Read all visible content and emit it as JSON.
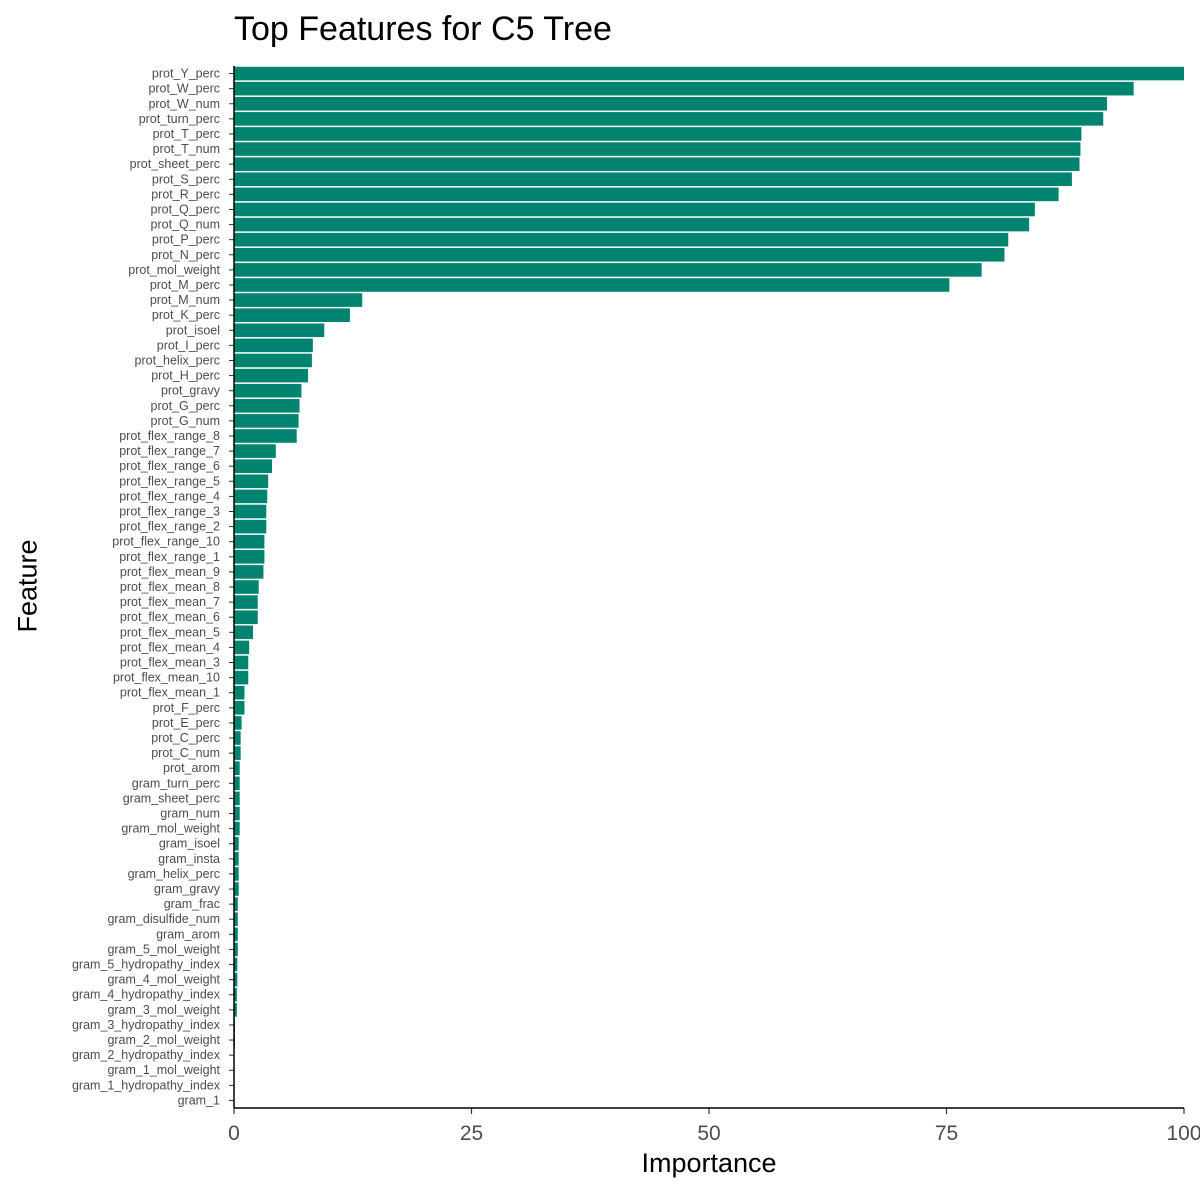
{
  "chart_data": {
    "type": "bar",
    "orientation": "horizontal",
    "title": "Top Features for C5 Tree",
    "xlabel": "Importance",
    "ylabel": "Feature",
    "xlim": [
      0,
      100
    ],
    "xticks": [
      "0",
      "25",
      "50",
      "75",
      "100"
    ],
    "bar_color": "#00836F",
    "grid": false,
    "categories": [
      "prot_Y_perc",
      "prot_W_perc",
      "prot_W_num",
      "prot_turn_perc",
      "prot_T_perc",
      "prot_T_num",
      "prot_sheet_perc",
      "prot_S_perc",
      "prot_R_perc",
      "prot_Q_perc",
      "prot_Q_num",
      "prot_P_perc",
      "prot_N_perc",
      "prot_mol_weight",
      "prot_M_perc",
      "prot_M_num",
      "prot_K_perc",
      "prot_isoel",
      "prot_I_perc",
      "prot_helix_perc",
      "prot_H_perc",
      "prot_gravy",
      "prot_G_perc",
      "prot_G_num",
      "prot_flex_range_8",
      "prot_flex_range_7",
      "prot_flex_range_6",
      "prot_flex_range_5",
      "prot_flex_range_4",
      "prot_flex_range_3",
      "prot_flex_range_2",
      "prot_flex_range_10",
      "prot_flex_range_1",
      "prot_flex_mean_9",
      "prot_flex_mean_8",
      "prot_flex_mean_7",
      "prot_flex_mean_6",
      "prot_flex_mean_5",
      "prot_flex_mean_4",
      "prot_flex_mean_3",
      "prot_flex_mean_10",
      "prot_flex_mean_1",
      "prot_F_perc",
      "prot_E_perc",
      "prot_C_perc",
      "prot_C_num",
      "prot_arom",
      "gram_turn_perc",
      "gram_sheet_perc",
      "gram_num",
      "gram_mol_weight",
      "gram_isoel",
      "gram_insta",
      "gram_helix_perc",
      "gram_gravy",
      "gram_frac",
      "gram_disulfide_num",
      "gram_arom",
      "gram_5_mol_weight",
      "gram_5_hydropathy_index",
      "gram_4_mol_weight",
      "gram_4_hydropathy_index",
      "gram_3_mol_weight",
      "gram_3_hydropathy_index",
      "gram_2_mol_weight",
      "gram_2_hydropathy_index",
      "gram_1_mol_weight",
      "gram_1_hydropathy_index",
      "gram_1"
    ],
    "values": [
      100,
      94.7,
      91.9,
      91.5,
      89.2,
      89.1,
      89.0,
      88.2,
      86.8,
      84.3,
      83.7,
      81.5,
      81.1,
      78.7,
      75.3,
      13.5,
      12.2,
      9.5,
      8.3,
      8.2,
      7.8,
      7.1,
      6.9,
      6.8,
      6.6,
      4.4,
      4.0,
      3.6,
      3.5,
      3.4,
      3.4,
      3.2,
      3.2,
      3.1,
      2.6,
      2.5,
      2.5,
      2.0,
      1.6,
      1.5,
      1.5,
      1.1,
      1.1,
      0.8,
      0.7,
      0.7,
      0.6,
      0.6,
      0.6,
      0.6,
      0.6,
      0.5,
      0.5,
      0.5,
      0.5,
      0.4,
      0.4,
      0.4,
      0.4,
      0.35,
      0.35,
      0.3,
      0.3,
      0.1,
      0.1,
      0.05,
      0.05,
      0.02,
      0.0
    ]
  }
}
